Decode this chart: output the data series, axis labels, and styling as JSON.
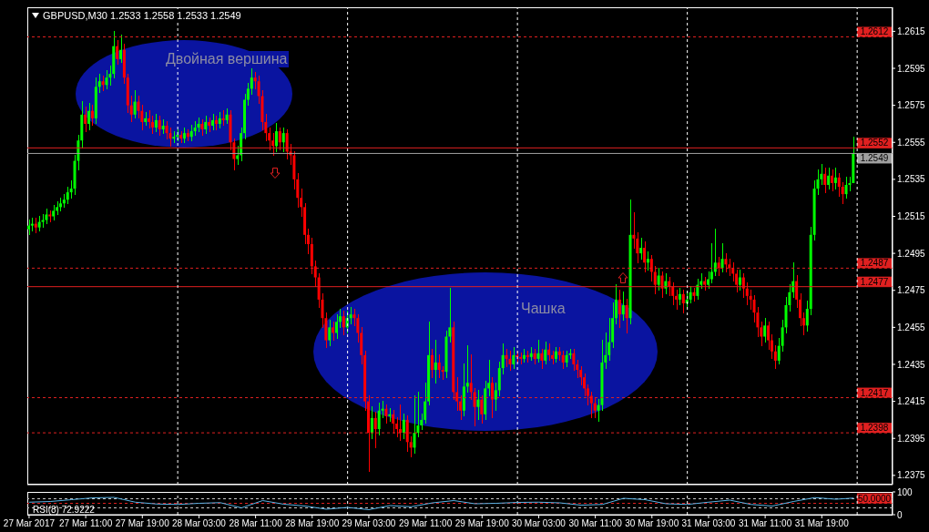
{
  "chart_data": [
    {
      "type": "candlestick",
      "title": "GBPUSD,M30 1.2533 1.2558 1.2533 1.2549",
      "x": [
        "2017-03-27T03:00",
        "2017-03-27T03:30",
        "2017-03-27T04:00",
        "2017-03-27T04:30",
        "2017-03-27T05:00",
        "2017-03-27T05:30",
        "2017-03-27T06:00",
        "2017-03-27T06:30",
        "2017-03-27T07:00",
        "2017-03-27T07:30",
        "2017-03-27T08:00",
        "2017-03-27T08:30",
        "2017-03-27T09:00",
        "2017-03-27T09:30",
        "2017-03-27T10:00",
        "2017-03-27T10:30",
        "2017-03-27T11:00",
        "2017-03-27T11:30",
        "2017-03-27T12:00",
        "2017-03-27T12:30",
        "2017-03-27T13:00",
        "2017-03-27T13:30",
        "2017-03-27T14:00",
        "2017-03-27T14:30",
        "2017-03-27T15:00",
        "2017-03-27T15:30",
        "2017-03-27T16:00",
        "2017-03-27T16:30",
        "2017-03-27T17:00",
        "2017-03-27T17:30",
        "2017-03-27T18:00",
        "2017-03-27T18:30",
        "2017-03-27T19:00",
        "2017-03-27T19:30",
        "2017-03-27T20:00",
        "2017-03-27T20:30",
        "2017-03-27T21:00",
        "2017-03-27T21:30",
        "2017-03-27T22:00",
        "2017-03-27T22:30",
        "2017-03-27T23:00",
        "2017-03-27T23:30",
        "2017-03-28T00:00",
        "2017-03-28T00:30",
        "2017-03-28T01:00",
        "2017-03-28T01:30",
        "2017-03-28T02:00",
        "2017-03-28T02:30",
        "2017-03-28T03:00",
        "2017-03-28T03:30",
        "2017-03-28T04:00",
        "2017-03-28T04:30",
        "2017-03-28T05:00",
        "2017-03-28T05:30",
        "2017-03-28T06:00",
        "2017-03-28T06:30",
        "2017-03-28T07:00",
        "2017-03-28T07:30",
        "2017-03-28T08:00",
        "2017-03-28T08:30",
        "2017-03-28T09:00",
        "2017-03-28T09:30",
        "2017-03-28T10:00",
        "2017-03-28T10:30",
        "2017-03-28T11:00",
        "2017-03-28T11:30",
        "2017-03-28T12:00",
        "2017-03-28T12:30",
        "2017-03-28T13:00",
        "2017-03-28T13:30",
        "2017-03-28T14:00",
        "2017-03-28T14:30",
        "2017-03-28T15:00",
        "2017-03-28T15:30",
        "2017-03-28T16:00",
        "2017-03-28T16:30",
        "2017-03-28T17:00",
        "2017-03-28T17:30",
        "2017-03-28T18:00",
        "2017-03-28T18:30",
        "2017-03-28T19:00",
        "2017-03-28T19:30",
        "2017-03-28T20:00",
        "2017-03-28T20:30",
        "2017-03-28T21:00",
        "2017-03-28T21:30",
        "2017-03-28T22:00",
        "2017-03-28T22:30",
        "2017-03-28T23:00",
        "2017-03-28T23:30",
        "2017-03-29T00:00",
        "2017-03-29T00:30",
        "2017-03-29T01:00",
        "2017-03-29T01:30",
        "2017-03-29T02:00",
        "2017-03-29T02:30",
        "2017-03-29T03:00",
        "2017-03-29T03:30",
        "2017-03-29T04:00",
        "2017-03-29T04:30",
        "2017-03-29T05:00",
        "2017-03-29T05:30",
        "2017-03-29T06:00",
        "2017-03-29T06:30",
        "2017-03-29T07:00",
        "2017-03-29T07:30",
        "2017-03-29T08:00",
        "2017-03-29T08:30",
        "2017-03-29T09:00",
        "2017-03-29T09:30",
        "2017-03-29T10:00",
        "2017-03-29T10:30",
        "2017-03-29T11:00",
        "2017-03-29T11:30",
        "2017-03-29T12:00",
        "2017-03-29T12:30",
        "2017-03-29T13:00",
        "2017-03-29T13:30",
        "2017-03-29T14:00",
        "2017-03-29T14:30",
        "2017-03-29T15:00",
        "2017-03-29T15:30",
        "2017-03-29T16:00",
        "2017-03-29T16:30",
        "2017-03-29T17:00",
        "2017-03-29T17:30",
        "2017-03-29T18:00",
        "2017-03-29T18:30",
        "2017-03-29T19:00",
        "2017-03-29T19:30",
        "2017-03-29T20:00",
        "2017-03-29T20:30",
        "2017-03-29T21:00",
        "2017-03-29T21:30",
        "2017-03-29T22:00",
        "2017-03-29T22:30",
        "2017-03-29T23:00",
        "2017-03-29T23:30",
        "2017-03-30T00:00",
        "2017-03-30T00:30",
        "2017-03-30T01:00",
        "2017-03-30T01:30",
        "2017-03-30T02:00",
        "2017-03-30T02:30",
        "2017-03-30T03:00",
        "2017-03-30T03:30",
        "2017-03-30T04:00",
        "2017-03-30T04:30",
        "2017-03-30T05:00",
        "2017-03-30T05:30",
        "2017-03-30T06:00",
        "2017-03-30T06:30",
        "2017-03-30T07:00",
        "2017-03-30T07:30",
        "2017-03-30T08:00",
        "2017-03-30T08:30",
        "2017-03-30T09:00",
        "2017-03-30T09:30",
        "2017-03-30T10:00",
        "2017-03-30T10:30",
        "2017-03-30T11:00",
        "2017-03-30T11:30",
        "2017-03-30T12:00",
        "2017-03-30T12:30",
        "2017-03-30T13:00",
        "2017-03-30T13:30",
        "2017-03-30T14:00",
        "2017-03-30T14:30",
        "2017-03-30T15:00",
        "2017-03-30T15:30",
        "2017-03-30T16:00",
        "2017-03-30T16:30",
        "2017-03-30T17:00",
        "2017-03-30T17:30",
        "2017-03-30T18:00",
        "2017-03-30T18:30",
        "2017-03-30T19:00",
        "2017-03-30T19:30",
        "2017-03-30T20:00",
        "2017-03-30T20:30",
        "2017-03-30T21:00",
        "2017-03-30T21:30",
        "2017-03-30T22:00",
        "2017-03-30T22:30",
        "2017-03-30T23:00",
        "2017-03-30T23:30",
        "2017-03-31T00:00",
        "2017-03-31T00:30",
        "2017-03-31T01:00",
        "2017-03-31T01:30",
        "2017-03-31T02:00",
        "2017-03-31T02:30",
        "2017-03-31T03:00",
        "2017-03-31T03:30",
        "2017-03-31T04:00",
        "2017-03-31T04:30",
        "2017-03-31T05:00",
        "2017-03-31T05:30",
        "2017-03-31T06:00",
        "2017-03-31T06:30",
        "2017-03-31T07:00",
        "2017-03-31T07:30",
        "2017-03-31T08:00",
        "2017-03-31T08:30",
        "2017-03-31T09:00",
        "2017-03-31T09:30",
        "2017-03-31T10:00",
        "2017-03-31T10:30",
        "2017-03-31T11:00",
        "2017-03-31T11:30",
        "2017-03-31T12:00",
        "2017-03-31T12:30",
        "2017-03-31T13:00",
        "2017-03-31T13:30",
        "2017-03-31T14:00",
        "2017-03-31T14:30",
        "2017-03-31T15:00",
        "2017-03-31T15:30",
        "2017-03-31T16:00",
        "2017-03-31T16:30",
        "2017-03-31T17:00",
        "2017-03-31T17:30",
        "2017-03-31T18:00",
        "2017-03-31T18:30",
        "2017-03-31T19:00",
        "2017-03-31T19:30",
        "2017-03-31T20:00",
        "2017-03-31T20:30",
        "2017-03-31T21:00",
        "2017-03-31T21:30",
        "2017-03-31T22:00",
        "2017-03-31T22:30",
        "2017-03-31T23:00",
        "2017-03-31T23:30"
      ],
      "ohlc": [
        [
          1.2508,
          1.2513,
          1.2505,
          1.251
        ],
        [
          1.251,
          1.2514,
          1.2507,
          1.2511
        ],
        [
          1.2511,
          1.2514,
          1.2506,
          1.2509
        ],
        [
          1.2509,
          1.2515,
          1.2507,
          1.2512
        ],
        [
          1.2512,
          1.2516,
          1.2509,
          1.2513
        ],
        [
          1.2513,
          1.2519,
          1.2511,
          1.2516
        ],
        [
          1.2516,
          1.2518,
          1.2512,
          1.2515
        ],
        [
          1.2515,
          1.2521,
          1.2513,
          1.2518
        ],
        [
          1.2518,
          1.2523,
          1.2516,
          1.252
        ],
        [
          1.252,
          1.2525,
          1.2518,
          1.2522
        ],
        [
          1.2522,
          1.2527,
          1.252,
          1.2524
        ],
        [
          1.2524,
          1.2531,
          1.2522,
          1.2528
        ],
        [
          1.2528,
          1.2534,
          1.2525,
          1.253
        ],
        [
          1.253,
          1.2548,
          1.2527,
          1.2545
        ],
        [
          1.2545,
          1.2559,
          1.254,
          1.2556
        ],
        [
          1.2556,
          1.2577,
          1.2552,
          1.257
        ],
        [
          1.257,
          1.2574,
          1.2561,
          1.2565
        ],
        [
          1.2565,
          1.2576,
          1.2562,
          1.2572
        ],
        [
          1.2572,
          1.2575,
          1.2564,
          1.2568
        ],
        [
          1.2568,
          1.259,
          1.2565,
          1.2585
        ],
        [
          1.2585,
          1.2592,
          1.2582,
          1.2588
        ],
        [
          1.2588,
          1.2591,
          1.2583,
          1.2586
        ],
        [
          1.2586,
          1.2594,
          1.2584,
          1.259
        ],
        [
          1.259,
          1.2596,
          1.2586,
          1.2592
        ],
        [
          1.2592,
          1.2615,
          1.259,
          1.2607
        ],
        [
          1.2607,
          1.261,
          1.2597,
          1.26
        ],
        [
          1.26,
          1.2613,
          1.2598,
          1.2605
        ],
        [
          1.2605,
          1.2608,
          1.2587,
          1.259
        ],
        [
          1.259,
          1.2592,
          1.2571,
          1.2575
        ],
        [
          1.2575,
          1.258,
          1.2566,
          1.257
        ],
        [
          1.257,
          1.2583,
          1.2568,
          1.2577
        ],
        [
          1.2577,
          1.258,
          1.2568,
          1.2572
        ],
        [
          1.2572,
          1.2575,
          1.2562,
          1.2566
        ],
        [
          1.2566,
          1.2571,
          1.2564,
          1.2568
        ],
        [
          1.2568,
          1.2572,
          1.2563,
          1.2566
        ],
        [
          1.2566,
          1.2569,
          1.256,
          1.2563
        ],
        [
          1.2563,
          1.257,
          1.2561,
          1.2567
        ],
        [
          1.2567,
          1.2569,
          1.2559,
          1.2562
        ],
        [
          1.2562,
          1.2567,
          1.256,
          1.2564
        ],
        [
          1.2564,
          1.2566,
          1.2557,
          1.256
        ],
        [
          1.256,
          1.2563,
          1.2553,
          1.2557
        ],
        [
          1.2557,
          1.2561,
          1.2555,
          1.2558
        ],
        [
          1.2558,
          1.2562,
          1.2556,
          1.2559
        ],
        [
          1.2559,
          1.2561,
          1.2555,
          1.2557
        ],
        [
          1.2557,
          1.2563,
          1.2555,
          1.256
        ],
        [
          1.256,
          1.2562,
          1.2556,
          1.2558
        ],
        [
          1.2558,
          1.2564,
          1.2556,
          1.2561
        ],
        [
          1.2561,
          1.2566,
          1.2559,
          1.2563
        ],
        [
          1.2563,
          1.2568,
          1.2561,
          1.2565
        ],
        [
          1.2565,
          1.2567,
          1.2559,
          1.2562
        ],
        [
          1.2562,
          1.2569,
          1.256,
          1.2566
        ],
        [
          1.2566,
          1.2568,
          1.2561,
          1.2564
        ],
        [
          1.2564,
          1.257,
          1.2562,
          1.2567
        ],
        [
          1.2567,
          1.2569,
          1.2562,
          1.2565
        ],
        [
          1.2565,
          1.2571,
          1.2563,
          1.2568
        ],
        [
          1.2568,
          1.2572,
          1.2564,
          1.2567
        ],
        [
          1.2567,
          1.2573,
          1.2565,
          1.257
        ],
        [
          1.257,
          1.2572,
          1.2551,
          1.2555
        ],
        [
          1.2555,
          1.2557,
          1.254,
          1.2546
        ],
        [
          1.2546,
          1.2553,
          1.2543,
          1.2548
        ],
        [
          1.2548,
          1.2563,
          1.2545,
          1.256
        ],
        [
          1.256,
          1.2581,
          1.2557,
          1.2578
        ],
        [
          1.2578,
          1.2587,
          1.2575,
          1.2584
        ],
        [
          1.2584,
          1.2595,
          1.2581,
          1.259
        ],
        [
          1.259,
          1.2593,
          1.2584,
          1.2588
        ],
        [
          1.2588,
          1.2591,
          1.2576,
          1.258
        ],
        [
          1.258,
          1.2583,
          1.2562,
          1.2566
        ],
        [
          1.2566,
          1.257,
          1.2556,
          1.256
        ],
        [
          1.256,
          1.2563,
          1.2551,
          1.2556
        ],
        [
          1.2556,
          1.256,
          1.2548,
          1.2553
        ],
        [
          1.2553,
          1.2565,
          1.255,
          1.2561
        ],
        [
          1.2561,
          1.2563,
          1.2551,
          1.2555
        ],
        [
          1.2555,
          1.2563,
          1.255,
          1.256
        ],
        [
          1.256,
          1.2562,
          1.2546,
          1.255
        ],
        [
          1.255,
          1.2554,
          1.2543,
          1.2548
        ],
        [
          1.2548,
          1.255,
          1.253,
          1.2535
        ],
        [
          1.2535,
          1.2538,
          1.252,
          1.2525
        ],
        [
          1.2525,
          1.253,
          1.2515,
          1.252
        ],
        [
          1.252,
          1.2522,
          1.25,
          1.2505
        ],
        [
          1.2505,
          1.2508,
          1.2495,
          1.25
        ],
        [
          1.25,
          1.2503,
          1.2484,
          1.2488
        ],
        [
          1.2488,
          1.2491,
          1.2477,
          1.2482
        ],
        [
          1.2482,
          1.2484,
          1.2466,
          1.247
        ],
        [
          1.247,
          1.2473,
          1.2455,
          1.246
        ],
        [
          1.246,
          1.2463,
          1.2444,
          1.2448
        ],
        [
          1.2448,
          1.2459,
          1.2445,
          1.2455
        ],
        [
          1.2455,
          1.2458,
          1.2448,
          1.2452
        ],
        [
          1.2452,
          1.2462,
          1.2449,
          1.2458
        ],
        [
          1.2458,
          1.2465,
          1.2455,
          1.2461
        ],
        [
          1.2461,
          1.2464,
          1.2451,
          1.2455
        ],
        [
          1.2455,
          1.2464,
          1.2452,
          1.246
        ],
        [
          1.246,
          1.2466,
          1.2457,
          1.2462
        ],
        [
          1.2462,
          1.2465,
          1.2456,
          1.246
        ],
        [
          1.246,
          1.2462,
          1.2447,
          1.2452
        ],
        [
          1.2452,
          1.2455,
          1.2435,
          1.244
        ],
        [
          1.244,
          1.2442,
          1.241,
          1.2415
        ],
        [
          1.2415,
          1.2418,
          1.2377,
          1.2398
        ],
        [
          1.2398,
          1.2412,
          1.2395,
          1.2406
        ],
        [
          1.2406,
          1.2409,
          1.239,
          1.24
        ],
        [
          1.24,
          1.2414,
          1.2397,
          1.241
        ],
        [
          1.241,
          1.2415,
          1.2406,
          1.2411
        ],
        [
          1.2411,
          1.2413,
          1.2403,
          1.2407
        ],
        [
          1.2407,
          1.2411,
          1.2404,
          1.2408
        ],
        [
          1.2408,
          1.241,
          1.2398,
          1.2403
        ],
        [
          1.2403,
          1.2406,
          1.2396,
          1.24
        ],
        [
          1.24,
          1.2413,
          1.2394,
          1.2398
        ],
        [
          1.2398,
          1.2408,
          1.2395,
          1.2405
        ],
        [
          1.2405,
          1.2407,
          1.2388,
          1.2393
        ],
        [
          1.2393,
          1.2396,
          1.2385,
          1.239
        ],
        [
          1.239,
          1.2418,
          1.2387,
          1.2398
        ],
        [
          1.2398,
          1.242,
          1.2396,
          1.2402
        ],
        [
          1.2402,
          1.2408,
          1.24,
          1.2405
        ],
        [
          1.2405,
          1.2425,
          1.2403,
          1.2415
        ],
        [
          1.2415,
          1.2458,
          1.2413,
          1.244
        ],
        [
          1.244,
          1.2443,
          1.2428,
          1.2432
        ],
        [
          1.2432,
          1.2448,
          1.2425,
          1.2436
        ],
        [
          1.2436,
          1.244,
          1.2428,
          1.2432
        ],
        [
          1.2432,
          1.2434,
          1.2427,
          1.2431
        ],
        [
          1.2431,
          1.2453,
          1.2428,
          1.245
        ],
        [
          1.245,
          1.2476,
          1.2447,
          1.2455
        ],
        [
          1.2455,
          1.2458,
          1.2416,
          1.242
        ],
        [
          1.242,
          1.2428,
          1.241,
          1.2415
        ],
        [
          1.2415,
          1.2418,
          1.2405,
          1.241
        ],
        [
          1.241,
          1.2435,
          1.2407,
          1.2423
        ],
        [
          1.2423,
          1.2445,
          1.242,
          1.2425
        ],
        [
          1.2425,
          1.244,
          1.2416,
          1.242
        ],
        [
          1.242,
          1.2422,
          1.2402,
          1.2412
        ],
        [
          1.2412,
          1.2421,
          1.2405,
          1.2416
        ],
        [
          1.2416,
          1.2418,
          1.2403,
          1.2408
        ],
        [
          1.2408,
          1.2426,
          1.2405,
          1.2422
        ],
        [
          1.2422,
          1.2437,
          1.2418,
          1.2425
        ],
        [
          1.2425,
          1.2428,
          1.2406,
          1.2416
        ],
        [
          1.2416,
          1.2425,
          1.241,
          1.2421
        ],
        [
          1.2421,
          1.2436,
          1.2418,
          1.2433
        ],
        [
          1.2433,
          1.2446,
          1.243,
          1.244
        ],
        [
          1.244,
          1.2443,
          1.2434,
          1.2438
        ],
        [
          1.2438,
          1.2442,
          1.2432,
          1.2435
        ],
        [
          1.2435,
          1.2444,
          1.2433,
          1.244
        ],
        [
          1.244,
          1.2442,
          1.2436,
          1.2439
        ],
        [
          1.2439,
          1.2441,
          1.2435,
          1.2438
        ],
        [
          1.2438,
          1.2443,
          1.2436,
          1.244
        ],
        [
          1.244,
          1.2442,
          1.2436,
          1.2439
        ],
        [
          1.2439,
          1.2444,
          1.2437,
          1.2441
        ],
        [
          1.2441,
          1.2443,
          1.2435,
          1.2438
        ],
        [
          1.2438,
          1.2448,
          1.2436,
          1.2441
        ],
        [
          1.2441,
          1.2443,
          1.2433,
          1.2437
        ],
        [
          1.2437,
          1.2447,
          1.2435,
          1.2443
        ],
        [
          1.2443,
          1.2446,
          1.2437,
          1.244
        ],
        [
          1.244,
          1.2442,
          1.2435,
          1.2438
        ],
        [
          1.2438,
          1.2444,
          1.2436,
          1.2442
        ],
        [
          1.2442,
          1.2444,
          1.2437,
          1.244
        ],
        [
          1.244,
          1.2442,
          1.2433,
          1.2436
        ],
        [
          1.2436,
          1.2442,
          1.2434,
          1.244
        ],
        [
          1.244,
          1.2443,
          1.2438,
          1.2441
        ],
        [
          1.2441,
          1.2443,
          1.2432,
          1.2435
        ],
        [
          1.2435,
          1.2437,
          1.2428,
          1.2432
        ],
        [
          1.2432,
          1.2434,
          1.2424,
          1.2428
        ],
        [
          1.2428,
          1.243,
          1.2418,
          1.2422
        ],
        [
          1.2422,
          1.2424,
          1.2413,
          1.2418
        ],
        [
          1.2418,
          1.242,
          1.2406,
          1.2414
        ],
        [
          1.2414,
          1.2417,
          1.2406,
          1.241
        ],
        [
          1.241,
          1.2416,
          1.2404,
          1.2413
        ],
        [
          1.2413,
          1.2448,
          1.241,
          1.2436
        ],
        [
          1.2436,
          1.2452,
          1.2433,
          1.244
        ],
        [
          1.244,
          1.246,
          1.2437,
          1.2447
        ],
        [
          1.2447,
          1.2468,
          1.2444,
          1.246
        ],
        [
          1.246,
          1.2478,
          1.2457,
          1.247
        ],
        [
          1.247,
          1.2475,
          1.2455,
          1.2462
        ],
        [
          1.2462,
          1.2474,
          1.2459,
          1.2467
        ],
        [
          1.2467,
          1.247,
          1.2452,
          1.246
        ],
        [
          1.246,
          1.2524,
          1.2457,
          1.2505
        ],
        [
          1.2505,
          1.2517,
          1.2498,
          1.2503
        ],
        [
          1.2503,
          1.2506,
          1.249,
          1.2495
        ],
        [
          1.2495,
          1.2503,
          1.2492,
          1.2498
        ],
        [
          1.2498,
          1.2501,
          1.2485,
          1.249
        ],
        [
          1.249,
          1.2496,
          1.2486,
          1.2492
        ],
        [
          1.2492,
          1.2494,
          1.248,
          1.2485
        ],
        [
          1.2485,
          1.2488,
          1.2473,
          1.2478
        ],
        [
          1.2478,
          1.2487,
          1.2475,
          1.2483
        ],
        [
          1.2483,
          1.2485,
          1.2471,
          1.2476
        ],
        [
          1.2476,
          1.2484,
          1.2473,
          1.248
        ],
        [
          1.248,
          1.2482,
          1.2472,
          1.2477
        ],
        [
          1.2477,
          1.2479,
          1.2467,
          1.2472
        ],
        [
          1.2472,
          1.2475,
          1.2465,
          1.247
        ],
        [
          1.247,
          1.2476,
          1.2467,
          1.2473
        ],
        [
          1.2473,
          1.2475,
          1.2463,
          1.2468
        ],
        [
          1.2468,
          1.2474,
          1.2465,
          1.247
        ],
        [
          1.247,
          1.2477,
          1.2468,
          1.2474
        ],
        [
          1.2474,
          1.2476,
          1.2469,
          1.2472
        ],
        [
          1.2472,
          1.2481,
          1.247,
          1.2478
        ],
        [
          1.2478,
          1.2484,
          1.2476,
          1.248
        ],
        [
          1.248,
          1.2482,
          1.2475,
          1.2478
        ],
        [
          1.2478,
          1.2485,
          1.2476,
          1.2481
        ],
        [
          1.2481,
          1.25,
          1.2479,
          1.2485
        ],
        [
          1.2485,
          1.2508,
          1.2483,
          1.249
        ],
        [
          1.249,
          1.2493,
          1.2483,
          1.2487
        ],
        [
          1.2487,
          1.25,
          1.2485,
          1.2492
        ],
        [
          1.2492,
          1.2495,
          1.2485,
          1.2489
        ],
        [
          1.2489,
          1.2492,
          1.2483,
          1.2487
        ],
        [
          1.2487,
          1.249,
          1.248,
          1.2484
        ],
        [
          1.2484,
          1.2486,
          1.2474,
          1.2478
        ],
        [
          1.2478,
          1.2486,
          1.2475,
          1.2482
        ],
        [
          1.2482,
          1.2484,
          1.2471,
          1.2476
        ],
        [
          1.2476,
          1.2479,
          1.2467,
          1.2472
        ],
        [
          1.2472,
          1.2475,
          1.2465,
          1.247
        ],
        [
          1.247,
          1.2472,
          1.2458,
          1.2463
        ],
        [
          1.2463,
          1.2466,
          1.245,
          1.2455
        ],
        [
          1.2455,
          1.2458,
          1.2445,
          1.245
        ],
        [
          1.245,
          1.246,
          1.2447,
          1.2456
        ],
        [
          1.2456,
          1.2458,
          1.2443,
          1.2448
        ],
        [
          1.2448,
          1.2451,
          1.2438,
          1.2442
        ],
        [
          1.2442,
          1.2445,
          1.2433,
          1.2437
        ],
        [
          1.2437,
          1.2449,
          1.2435,
          1.2445
        ],
        [
          1.2445,
          1.2459,
          1.2442,
          1.2455
        ],
        [
          1.2455,
          1.2471,
          1.2452,
          1.2467
        ],
        [
          1.2467,
          1.2478,
          1.2464,
          1.2474
        ],
        [
          1.2474,
          1.249,
          1.2471,
          1.248
        ],
        [
          1.248,
          1.2483,
          1.2466,
          1.247
        ],
        [
          1.247,
          1.2473,
          1.2456,
          1.246
        ],
        [
          1.246,
          1.2463,
          1.2451,
          1.2456
        ],
        [
          1.2456,
          1.2469,
          1.2453,
          1.2465
        ],
        [
          1.2465,
          1.2509,
          1.2462,
          1.2505
        ],
        [
          1.2505,
          1.2534,
          1.2502,
          1.253
        ],
        [
          1.253,
          1.254,
          1.2527,
          1.2535
        ],
        [
          1.2535,
          1.2543,
          1.2532,
          1.2538
        ],
        [
          1.2538,
          1.2541,
          1.2528,
          1.2532
        ],
        [
          1.2532,
          1.2541,
          1.253,
          1.2537
        ],
        [
          1.2537,
          1.254,
          1.2529,
          1.2533
        ],
        [
          1.2533,
          1.2541,
          1.253,
          1.2536
        ],
        [
          1.2536,
          1.2538,
          1.2526,
          1.2531
        ],
        [
          1.2531,
          1.2533,
          1.2522,
          1.2527
        ],
        [
          1.2527,
          1.2536,
          1.2525,
          1.2532
        ],
        [
          1.2532,
          1.2536,
          1.2529,
          1.2533
        ],
        [
          1.2533,
          1.2558,
          1.2533,
          1.2549
        ]
      ],
      "xlim": [
        "2017-03-27T02:45",
        "2017-04-01T05:00"
      ],
      "ylim": [
        1.237,
        1.2628
      ],
      "yticks": [
        1.2375,
        1.2395,
        1.2415,
        1.2435,
        1.2455,
        1.2475,
        1.2495,
        1.2515,
        1.2535,
        1.2555,
        1.2575,
        1.2595,
        1.2615
      ],
      "tick_labels": "y",
      "ref_lines": [
        {
          "axis": "y",
          "value": 1.2612,
          "label": "1.2612",
          "color": "#e02020",
          "line_style": "dashed"
        },
        {
          "axis": "y",
          "value": 1.2552,
          "label": "1.2552",
          "color": "#e02020",
          "line_style": "solid"
        },
        {
          "axis": "y",
          "value": 1.2549,
          "label": "1.2549",
          "color": "#a0a0a0",
          "line_style": "solid"
        },
        {
          "axis": "y",
          "value": 1.2487,
          "label": "1.2487",
          "color": "#e02020",
          "line_style": "dashed"
        },
        {
          "axis": "y",
          "value": 1.2477,
          "label": "1.2477",
          "color": "#e02020",
          "line_style": "solid"
        },
        {
          "axis": "y",
          "value": 1.2417,
          "label": "1.2417",
          "color": "#e02020",
          "line_style": "dashed"
        },
        {
          "axis": "y",
          "value": 1.2398,
          "label": "1.2398",
          "color": "#e02020",
          "line_style": "dashed"
        },
        {
          "axis": "x",
          "value": "2017-03-28T00:00",
          "color": "#ffffff",
          "line_style": "dashed"
        },
        {
          "axis": "x",
          "value": "2017-03-29T00:00",
          "color": "#ffffff",
          "line_style": "dashed"
        },
        {
          "axis": "x",
          "value": "2017-03-30T00:00",
          "color": "#ffffff",
          "line_style": "dashed"
        },
        {
          "axis": "x",
          "value": "2017-03-31T00:00",
          "color": "#ffffff",
          "line_style": "dashed"
        },
        {
          "axis": "x",
          "value": "2017-04-01T00:00",
          "color": "#ffffff",
          "line_style": "dashed"
        }
      ],
      "annotations": [
        "Двойная вершина",
        "Чашка"
      ]
    },
    {
      "type": "line",
      "title": "RSI(8) 72.9222",
      "series": [
        {
          "color": "#5ab4e6",
          "x": [
            "2017-03-27T03:00",
            "2017-03-27T06:00",
            "2017-03-27T09:00",
            "2017-03-27T12:00",
            "2017-03-27T15:00",
            "2017-03-27T18:00",
            "2017-03-27T21:00",
            "2017-03-28T00:00",
            "2017-03-28T03:00",
            "2017-03-28T06:00",
            "2017-03-28T09:00",
            "2017-03-28T12:00",
            "2017-03-28T15:00",
            "2017-03-28T18:00",
            "2017-03-28T21:00",
            "2017-03-29T00:00",
            "2017-03-29T03:00",
            "2017-03-29T06:00",
            "2017-03-29T09:00",
            "2017-03-29T12:00",
            "2017-03-29T15:00",
            "2017-03-29T18:00",
            "2017-03-29T21:00",
            "2017-03-30T00:00",
            "2017-03-30T03:00",
            "2017-03-30T06:00",
            "2017-03-30T09:00",
            "2017-03-30T12:00",
            "2017-03-30T15:00",
            "2017-03-30T18:00",
            "2017-03-30T21:00",
            "2017-03-31T00:00",
            "2017-03-31T03:00",
            "2017-03-31T06:00",
            "2017-03-31T09:00",
            "2017-03-31T12:00",
            "2017-03-31T15:00",
            "2017-03-31T18:00",
            "2017-03-31T21:00",
            "2017-03-31T23:30"
          ],
          "values": [
            55,
            58,
            66,
            74,
            76,
            55,
            47,
            45,
            50,
            53,
            30,
            62,
            46,
            38,
            24,
            32,
            22,
            40,
            35,
            52,
            62,
            48,
            50,
            54,
            55,
            52,
            42,
            45,
            72,
            66,
            48,
            45,
            55,
            64,
            45,
            38,
            58,
            75,
            68,
            73
          ]
        }
      ],
      "xlim": [
        "2017-03-27T02:45",
        "2017-04-01T05:00"
      ],
      "xticks": [
        {
          "value": "2017-03-27T03:00",
          "label": "27 Mar 2017"
        },
        {
          "value": "2017-03-27T11:00",
          "label": "27 Mar 11:00"
        },
        {
          "value": "2017-03-27T19:00",
          "label": "27 Mar 19:00"
        },
        {
          "value": "2017-03-28T03:00",
          "label": "28 Mar 03:00"
        },
        {
          "value": "2017-03-28T11:00",
          "label": "28 Mar 11:00"
        },
        {
          "value": "2017-03-28T19:00",
          "label": "28 Mar 19:00"
        },
        {
          "value": "2017-03-29T03:00",
          "label": "29 Mar 03:00"
        },
        {
          "value": "2017-03-29T11:00",
          "label": "29 Mar 11:00"
        },
        {
          "value": "2017-03-29T19:00",
          "label": "29 Mar 19:00"
        },
        {
          "value": "2017-03-30T03:00",
          "label": "30 Mar 03:00"
        },
        {
          "value": "2017-03-30T11:00",
          "label": "30 Mar 11:00"
        },
        {
          "value": "2017-03-30T19:00",
          "label": "30 Mar 19:00"
        },
        {
          "value": "2017-03-31T03:00",
          "label": "31 Mar 03:00"
        },
        {
          "value": "2017-03-31T11:00",
          "label": "31 Mar 11:00"
        },
        {
          "value": "2017-03-31T19:00",
          "label": "31 Mar 19:00"
        }
      ],
      "ylim": [
        0,
        100
      ],
      "yticks": [
        0,
        100
      ],
      "ref_lines": [
        {
          "axis": "y",
          "value": 70,
          "color": "#c8c8c8",
          "line_style": "dashed"
        },
        {
          "axis": "y",
          "value": 50,
          "label": "50.0000",
          "color": "#e02020",
          "line_style": "dashed"
        },
        {
          "axis": "y",
          "value": 30,
          "color": "#c8c8c8",
          "line_style": "dashed"
        },
        {
          "axis": "x",
          "value": "2017-03-28T00:00",
          "color": "#ffffff",
          "line_style": "dashed"
        },
        {
          "axis": "x",
          "value": "2017-03-29T00:00",
          "color": "#ffffff",
          "line_style": "dashed"
        },
        {
          "axis": "x",
          "value": "2017-03-30T00:00",
          "color": "#ffffff",
          "line_style": "dashed"
        },
        {
          "axis": "x",
          "value": "2017-03-31T00:00",
          "color": "#ffffff",
          "line_style": "dashed"
        },
        {
          "axis": "x",
          "value": "2017-04-01T00:00",
          "color": "#ffffff",
          "line_style": "dashed"
        }
      ]
    }
  ]
}
